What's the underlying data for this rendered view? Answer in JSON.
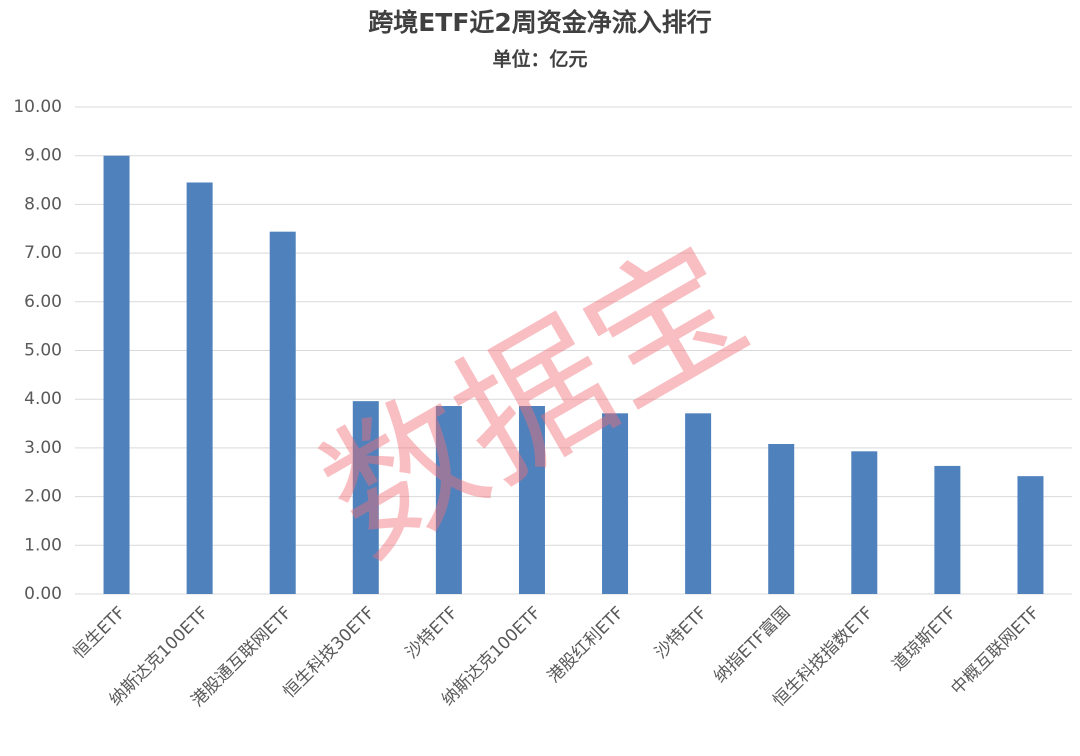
{
  "chart_data": {
    "type": "bar",
    "title": "跨境ETF近2周资金净流入排行",
    "subtitle": "单位：亿元",
    "watermark": "数据宝",
    "categories": [
      "恒生ETF",
      "纳斯达克100ETF",
      "港股通互联网ETF",
      "恒生科技30ETF",
      "沙特ETF",
      "纳斯达克100ETF",
      "港股红利ETF",
      "沙特ETF",
      "纳指ETF富国",
      "恒生科技指数ETF",
      "道琼斯ETF",
      "中概互联网ETF"
    ],
    "values": [
      9.0,
      8.45,
      7.44,
      3.96,
      3.86,
      3.86,
      3.71,
      3.71,
      3.08,
      2.93,
      2.63,
      2.42
    ],
    "color": "#4f81bd",
    "ylim": [
      0,
      10
    ],
    "yticks": [
      {
        "value": 0,
        "label": "0.00"
      },
      {
        "value": 1,
        "label": "1.00"
      },
      {
        "value": 2,
        "label": "2.00"
      },
      {
        "value": 3,
        "label": "3.00"
      },
      {
        "value": 4,
        "label": "4.00"
      },
      {
        "value": 5,
        "label": "5.00"
      },
      {
        "value": 6,
        "label": "6.00"
      },
      {
        "value": 7,
        "label": "7.00"
      },
      {
        "value": 8,
        "label": "8.00"
      },
      {
        "value": 9,
        "label": "9.00"
      },
      {
        "value": 10,
        "label": "10.00"
      }
    ],
    "grid": true
  }
}
